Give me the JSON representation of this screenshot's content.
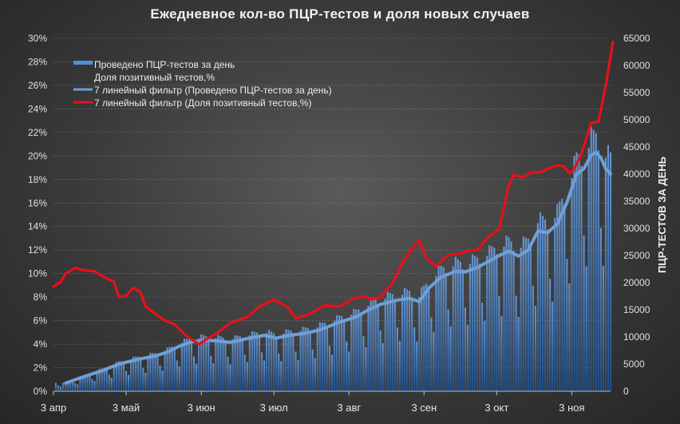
{
  "chart_data": {
    "type": "bar",
    "title": "Ежедневное кол-во ПЦР-тестов и доля новых случаев",
    "ylabel_right": "ПЦР-ТЕСТОВ ЗА ДЕНЬ",
    "y_left": {
      "min": 0,
      "max": 30,
      "step": 2,
      "format": "percent"
    },
    "y_right": {
      "min": 0,
      "max": 65000,
      "step": 5000
    },
    "x_ticks": [
      {
        "label": "3 апр",
        "day": 0
      },
      {
        "label": "3 май",
        "day": 30
      },
      {
        "label": "3 июн",
        "day": 61
      },
      {
        "label": "3 июл",
        "day": 91
      },
      {
        "label": "3 авг",
        "day": 122
      },
      {
        "label": "3 сен",
        "day": 153
      },
      {
        "label": "3 окт",
        "day": 183
      },
      {
        "label": "3 ноя",
        "day": 214
      }
    ],
    "x_range_days": [
      0,
      230
    ],
    "legend": [
      {
        "label": "Проведено ПЦР-тестов  за день",
        "color": "#4f8fd8",
        "kind": "bar"
      },
      {
        "label": "Доля позитивный  тестов,%",
        "color": "",
        "kind": "none"
      },
      {
        "label": "7 линейный фильтр (Проведено ПЦР-тестов  за день)",
        "color": "#6f9fd8",
        "kind": "line"
      },
      {
        "label": "7 линейный фильтр (Доля позитивный  тестов,%)",
        "color": "#e8101a",
        "kind": "line"
      }
    ],
    "series": [
      {
        "name": "7 линейный фильтр (Проведено ПЦР-тестов  за день)",
        "axis": "right",
        "color": "#6f9fd8",
        "points": [
          [
            5,
            1500
          ],
          [
            12,
            2600
          ],
          [
            20,
            3800
          ],
          [
            27,
            5000
          ],
          [
            35,
            5900
          ],
          [
            42,
            6500
          ],
          [
            47,
            7200
          ],
          [
            52,
            8300
          ],
          [
            57,
            9100
          ],
          [
            62,
            9400
          ],
          [
            67,
            9300
          ],
          [
            73,
            9000
          ],
          [
            80,
            9700
          ],
          [
            87,
            10300
          ],
          [
            92,
            9800
          ],
          [
            97,
            10300
          ],
          [
            103,
            10600
          ],
          [
            110,
            11300
          ],
          [
            118,
            12700
          ],
          [
            125,
            13700
          ],
          [
            130,
            15000
          ],
          [
            135,
            16000
          ],
          [
            142,
            16800
          ],
          [
            147,
            17100
          ],
          [
            151,
            16500
          ],
          [
            155,
            19000
          ],
          [
            160,
            21000
          ],
          [
            166,
            22100
          ],
          [
            170,
            22000
          ],
          [
            175,
            22800
          ],
          [
            180,
            24000
          ],
          [
            184,
            25000
          ],
          [
            188,
            25800
          ],
          [
            192,
            24900
          ],
          [
            196,
            26000
          ],
          [
            200,
            29500
          ],
          [
            204,
            29200
          ],
          [
            208,
            30800
          ],
          [
            212,
            34800
          ],
          [
            216,
            40000
          ],
          [
            219,
            41000
          ],
          [
            222,
            43500
          ],
          [
            224,
            44000
          ],
          [
            226,
            43000
          ],
          [
            228,
            41000
          ],
          [
            230,
            40000
          ]
        ]
      },
      {
        "name": "7 линейный фильтр (Доля позитивный  тестов,%)",
        "axis": "left",
        "color": "#e8101a",
        "points": [
          [
            0,
            8.9
          ],
          [
            3,
            9.3
          ],
          [
            5,
            10.0
          ],
          [
            9,
            10.5
          ],
          [
            12,
            10.3
          ],
          [
            17,
            10.2
          ],
          [
            20,
            9.8
          ],
          [
            25,
            9.3
          ],
          [
            27,
            8.0
          ],
          [
            30,
            8.1
          ],
          [
            33,
            8.8
          ],
          [
            36,
            8.4
          ],
          [
            38,
            7.2
          ],
          [
            42,
            6.6
          ],
          [
            46,
            6.0
          ],
          [
            50,
            5.7
          ],
          [
            55,
            4.7
          ],
          [
            60,
            4.0
          ],
          [
            63,
            4.4
          ],
          [
            68,
            5.0
          ],
          [
            73,
            5.8
          ],
          [
            80,
            6.3
          ],
          [
            85,
            7.2
          ],
          [
            91,
            7.8
          ],
          [
            97,
            7.1
          ],
          [
            100,
            6.2
          ],
          [
            105,
            6.5
          ],
          [
            112,
            7.3
          ],
          [
            118,
            7.2
          ],
          [
            124,
            7.9
          ],
          [
            128,
            8.1
          ],
          [
            131,
            7.8
          ],
          [
            135,
            8.0
          ],
          [
            140,
            9.2
          ],
          [
            144,
            10.9
          ],
          [
            148,
            12.1
          ],
          [
            151,
            12.8
          ],
          [
            154,
            11.3
          ],
          [
            158,
            10.6
          ],
          [
            163,
            11.6
          ],
          [
            168,
            11.7
          ],
          [
            172,
            12.0
          ],
          [
            175,
            12.0
          ],
          [
            179,
            13.0
          ],
          [
            184,
            13.8
          ],
          [
            188,
            17.5
          ],
          [
            190,
            18.4
          ],
          [
            194,
            18.2
          ],
          [
            197,
            18.6
          ],
          [
            201,
            18.6
          ],
          [
            205,
            19.0
          ],
          [
            208,
            19.2
          ],
          [
            211,
            19.1
          ],
          [
            213,
            18.5
          ],
          [
            215,
            18.9
          ],
          [
            218,
            20.2
          ],
          [
            222,
            22.8
          ],
          [
            225,
            22.9
          ],
          [
            228,
            26.0
          ],
          [
            231,
            29.7
          ]
        ]
      }
    ]
  }
}
